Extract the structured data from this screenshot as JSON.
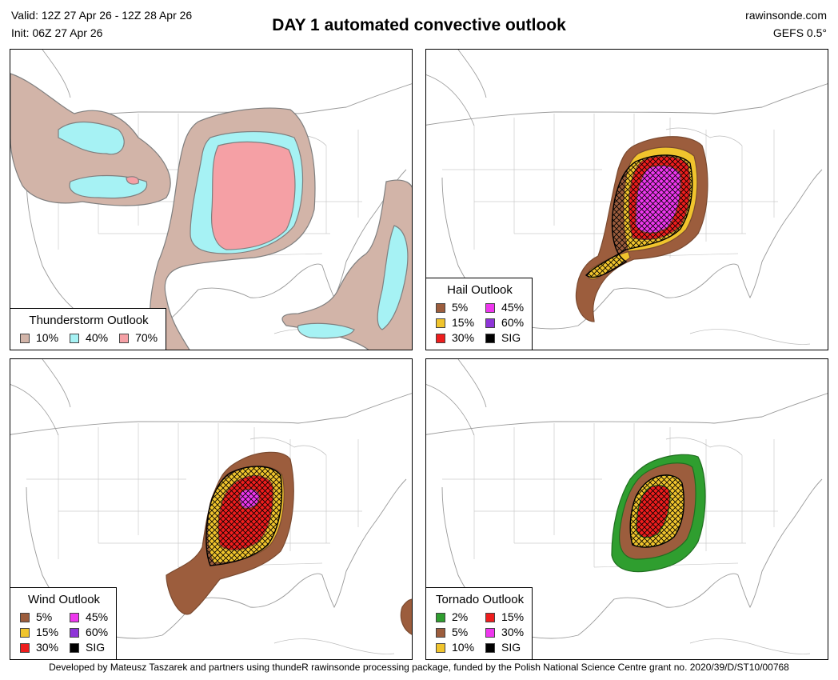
{
  "header": {
    "valid": "Valid: 12Z 27 Apr 26 - 12Z 28 Apr 26",
    "init": "Init: 06Z 27 Apr 26",
    "title": "DAY 1 automated convective outlook",
    "site": "rawinsonde.com",
    "model": "GEFS 0.5°"
  },
  "colors": {
    "outline": "#7f7f7f",
    "t10": "#d2b4a8",
    "t40": "#a6f2f4",
    "t70": "#f5a0a5",
    "p2": "#2f9e2f",
    "p5": "#9c5d3d",
    "p10": "#f0c42d",
    "p15": "#ee1d1d",
    "p30": "#ee1d1d",
    "p45": "#ee37ee",
    "p60": "#8e35d8",
    "sig": "#000000"
  },
  "panels": {
    "thunder": {
      "title": "Thunderstorm Outlook",
      "items": [
        {
          "label": "10%",
          "color": "#d2b4a8"
        },
        {
          "label": "40%",
          "color": "#a6f2f4"
        },
        {
          "label": "70%",
          "color": "#f5a0a5"
        }
      ]
    },
    "hail": {
      "title": "Hail Outlook",
      "items": [
        {
          "label": "5%",
          "color": "#9c5d3d"
        },
        {
          "label": "15%",
          "color": "#f0c42d"
        },
        {
          "label": "30%",
          "color": "#ee1d1d"
        },
        {
          "label": "45%",
          "color": "#ee37ee"
        },
        {
          "label": "60%",
          "color": "#8e35d8"
        },
        {
          "label": "SIG",
          "color": "#000000"
        }
      ]
    },
    "wind": {
      "title": "Wind Outlook",
      "items": [
        {
          "label": "5%",
          "color": "#9c5d3d"
        },
        {
          "label": "15%",
          "color": "#f0c42d"
        },
        {
          "label": "30%",
          "color": "#ee1d1d"
        },
        {
          "label": "45%",
          "color": "#ee37ee"
        },
        {
          "label": "60%",
          "color": "#8e35d8"
        },
        {
          "label": "SIG",
          "color": "#000000"
        }
      ]
    },
    "tornado": {
      "title": "Tornado Outlook",
      "items": [
        {
          "label": "2%",
          "color": "#2f9e2f"
        },
        {
          "label": "5%",
          "color": "#9c5d3d"
        },
        {
          "label": "10%",
          "color": "#f0c42d"
        },
        {
          "label": "15%",
          "color": "#ee1d1d"
        },
        {
          "label": "30%",
          "color": "#ee37ee"
        },
        {
          "label": "SIG",
          "color": "#000000"
        }
      ]
    }
  },
  "footer": "Developed by Mateusz Taszarek and partners using thundeR rawinsonde processing package, funded by the Polish National Science Centre grant no. 2020/39/D/ST10/00768"
}
